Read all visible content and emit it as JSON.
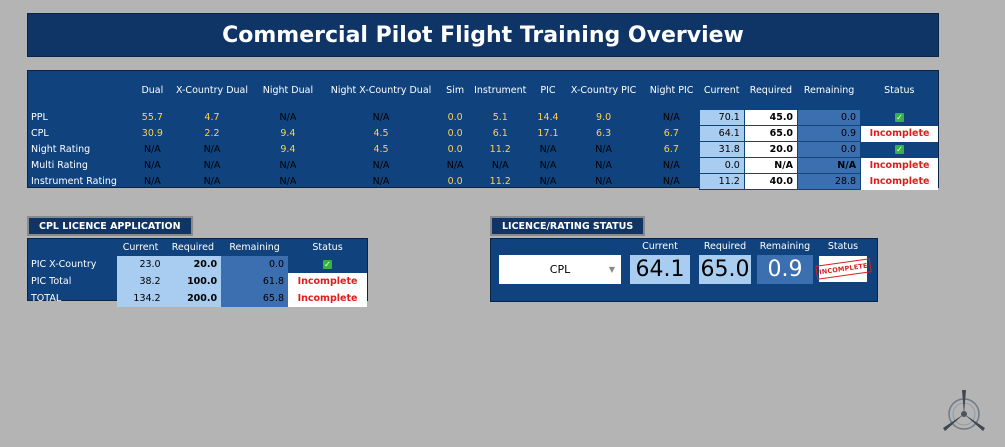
{
  "title": "Commercial Pilot Flight Training Overview",
  "main_table": {
    "headers": [
      "",
      "Dual",
      "X-Country Dual",
      "Night Dual",
      "Night X-Country Dual",
      "Sim",
      "Instrument",
      "PIC",
      "X-Country PIC",
      "Night PIC",
      "Current",
      "Required",
      "Remaining",
      "Status"
    ],
    "rows": [
      {
        "label": "PPL",
        "cells": [
          "55.7",
          "4.7",
          "N/A",
          "N/A",
          "0.0",
          "5.1",
          "14.4",
          "9.0",
          "N/A"
        ],
        "current": "70.1",
        "required": "45.0",
        "remaining": "0.0",
        "status": "ok"
      },
      {
        "label": "CPL",
        "cells": [
          "30.9",
          "2.2",
          "9.4",
          "4.5",
          "0.0",
          "6.1",
          "17.1",
          "6.3",
          "6.7"
        ],
        "current": "64.1",
        "required": "65.0",
        "remaining": "0.9",
        "status": "Incomplete"
      },
      {
        "label": "Night Rating",
        "cells": [
          "N/A",
          "N/A",
          "9.4",
          "4.5",
          "0.0",
          "11.2",
          "N/A",
          "N/A",
          "6.7"
        ],
        "current": "31.8",
        "required": "20.0",
        "remaining": "0.0",
        "status": "ok"
      },
      {
        "label": "Multi Rating",
        "cells": [
          "N/A",
          "N/A",
          "N/A",
          "N/A",
          "N/A",
          "N/A",
          "N/A",
          "N/A",
          "N/A"
        ],
        "current": "0.0",
        "required": "N/A",
        "remaining": "N/A",
        "status": "Incomplete"
      },
      {
        "label": "Instrument Rating",
        "cells": [
          "N/A",
          "N/A",
          "N/A",
          "N/A",
          "0.0",
          "11.2",
          "N/A",
          "N/A",
          "N/A"
        ],
        "current": "11.2",
        "required": "40.0",
        "remaining": "28.8",
        "status": "Incomplete"
      }
    ]
  },
  "cpl_section": {
    "label": "CPL LICENCE APPLICATION",
    "headers": [
      "",
      "Current",
      "Required",
      "Remaining",
      "Status"
    ],
    "rows": [
      {
        "label": "PIC X-Country",
        "current": "23.0",
        "required": "20.0",
        "remaining": "0.0",
        "status": "ok"
      },
      {
        "label": "PIC Total",
        "current": "38.2",
        "required": "100.0",
        "remaining": "61.8",
        "status": "Incomplete"
      },
      {
        "label": "TOTAL",
        "current": "134.2",
        "required": "200.0",
        "remaining": "65.8",
        "status": "Incomplete"
      }
    ]
  },
  "licence_status": {
    "label": "LICENCE/RATING STATUS",
    "headers": {
      "current": "Current",
      "required": "Required",
      "remaining": "Remaining",
      "status": "Status"
    },
    "selected": "CPL",
    "current": "64.1",
    "required": "65.0",
    "remaining": "0.9",
    "stamp": "INCOMPLETE"
  },
  "colors": {
    "navy": "#0f3566",
    "light_blue": "#a9cdf0",
    "mid_blue": "#3b6fb0",
    "yellow": "#ffd24a",
    "red": "#e21b1b",
    "green": "#36b24a"
  },
  "icons": {
    "check": "check-icon",
    "dropdown": "chevron-down-icon",
    "logo": "propeller-logo-icon"
  }
}
